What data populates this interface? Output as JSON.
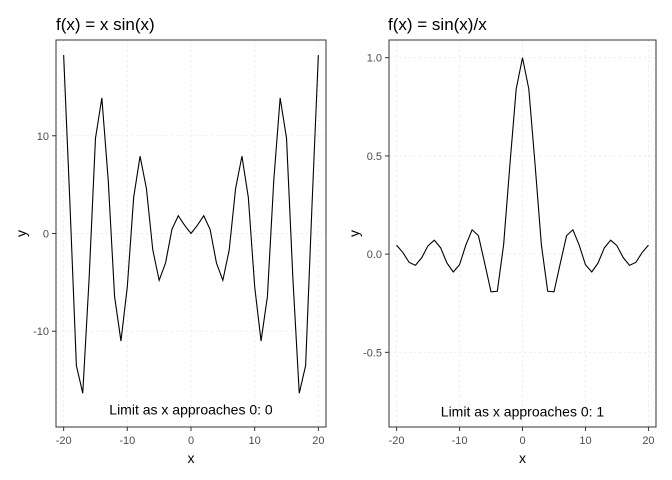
{
  "chart_data": [
    {
      "type": "line",
      "title": "f(x) = x sin(x)",
      "xlabel": "x",
      "ylabel": "y",
      "xlim": [
        -21.2,
        21.2
      ],
      "ylim": [
        -19.8,
        19.8
      ],
      "xticks": [
        -20,
        -10,
        0,
        10,
        20
      ],
      "xtick_labels": [
        "-20",
        "-10",
        "0",
        "10",
        "20"
      ],
      "yticks": [
        -10,
        0,
        10
      ],
      "ytick_labels": [
        "-10",
        "0",
        "10"
      ],
      "annotation": "Limit as x approaches 0: 0",
      "annotation_pos": {
        "x": 0,
        "y": -18
      },
      "grid": true,
      "function": "x*sin(x)",
      "x": [
        -20,
        -19,
        -18,
        -17,
        -16,
        -15,
        -14,
        -13,
        -12,
        -11,
        -10,
        -9,
        -8,
        -7,
        -6,
        -5,
        -4,
        -3,
        -2,
        -1,
        0,
        1,
        2,
        3,
        4,
        5,
        6,
        7,
        8,
        9,
        10,
        11,
        12,
        13,
        14,
        15,
        16,
        17,
        18,
        19,
        20
      ],
      "y": [
        18.26,
        2.85,
        -13.52,
        -16.34,
        -4.61,
        9.75,
        13.87,
        5.46,
        -6.44,
        -11.0,
        -5.44,
        3.71,
        7.91,
        4.6,
        -1.68,
        -4.79,
        -3.03,
        0.42,
        1.82,
        0.84,
        0,
        0.84,
        1.82,
        0.42,
        -3.03,
        -4.79,
        -1.68,
        4.6,
        7.91,
        3.71,
        -5.44,
        -11.0,
        -6.44,
        5.46,
        13.87,
        9.75,
        -4.61,
        -16.34,
        -13.52,
        2.85,
        18.26
      ]
    },
    {
      "type": "line",
      "title": "f(x) = sin(x)/x",
      "xlabel": "x",
      "ylabel": "y",
      "xlim": [
        -21.2,
        21.2
      ],
      "ylim": [
        -0.88,
        1.09
      ],
      "xticks": [
        -20,
        -10,
        0,
        10,
        20
      ],
      "xtick_labels": [
        "-20",
        "-10",
        "0",
        "10",
        "20"
      ],
      "yticks": [
        -0.5,
        0,
        0.5,
        1
      ],
      "ytick_labels": [
        "-0.5",
        "0.0",
        "0.5",
        "1.0"
      ],
      "annotation": "Limit as x approaches 0: 1",
      "annotation_pos": {
        "x": 0,
        "y": -0.8
      },
      "grid": true,
      "function": "sin(x)/x",
      "x": [
        -20,
        -19,
        -18,
        -17,
        -16,
        -15,
        -14,
        -13,
        -12,
        -11,
        -10,
        -9,
        -8,
        -7,
        -6,
        -5,
        -4,
        -3,
        -2,
        -1,
        0,
        1,
        2,
        3,
        4,
        5,
        6,
        7,
        8,
        9,
        10,
        11,
        12,
        13,
        14,
        15,
        16,
        17,
        18,
        19,
        20
      ],
      "y": [
        0.046,
        0.008,
        -0.042,
        -0.057,
        -0.018,
        0.043,
        0.071,
        0.032,
        -0.045,
        -0.091,
        -0.054,
        0.046,
        0.124,
        0.094,
        -0.047,
        -0.192,
        -0.189,
        0.047,
        0.455,
        0.841,
        1.0,
        0.841,
        0.455,
        0.047,
        -0.189,
        -0.192,
        -0.047,
        0.094,
        0.124,
        0.046,
        -0.054,
        -0.091,
        -0.045,
        0.032,
        0.071,
        0.043,
        -0.018,
        -0.057,
        -0.042,
        0.008,
        0.046
      ]
    }
  ]
}
